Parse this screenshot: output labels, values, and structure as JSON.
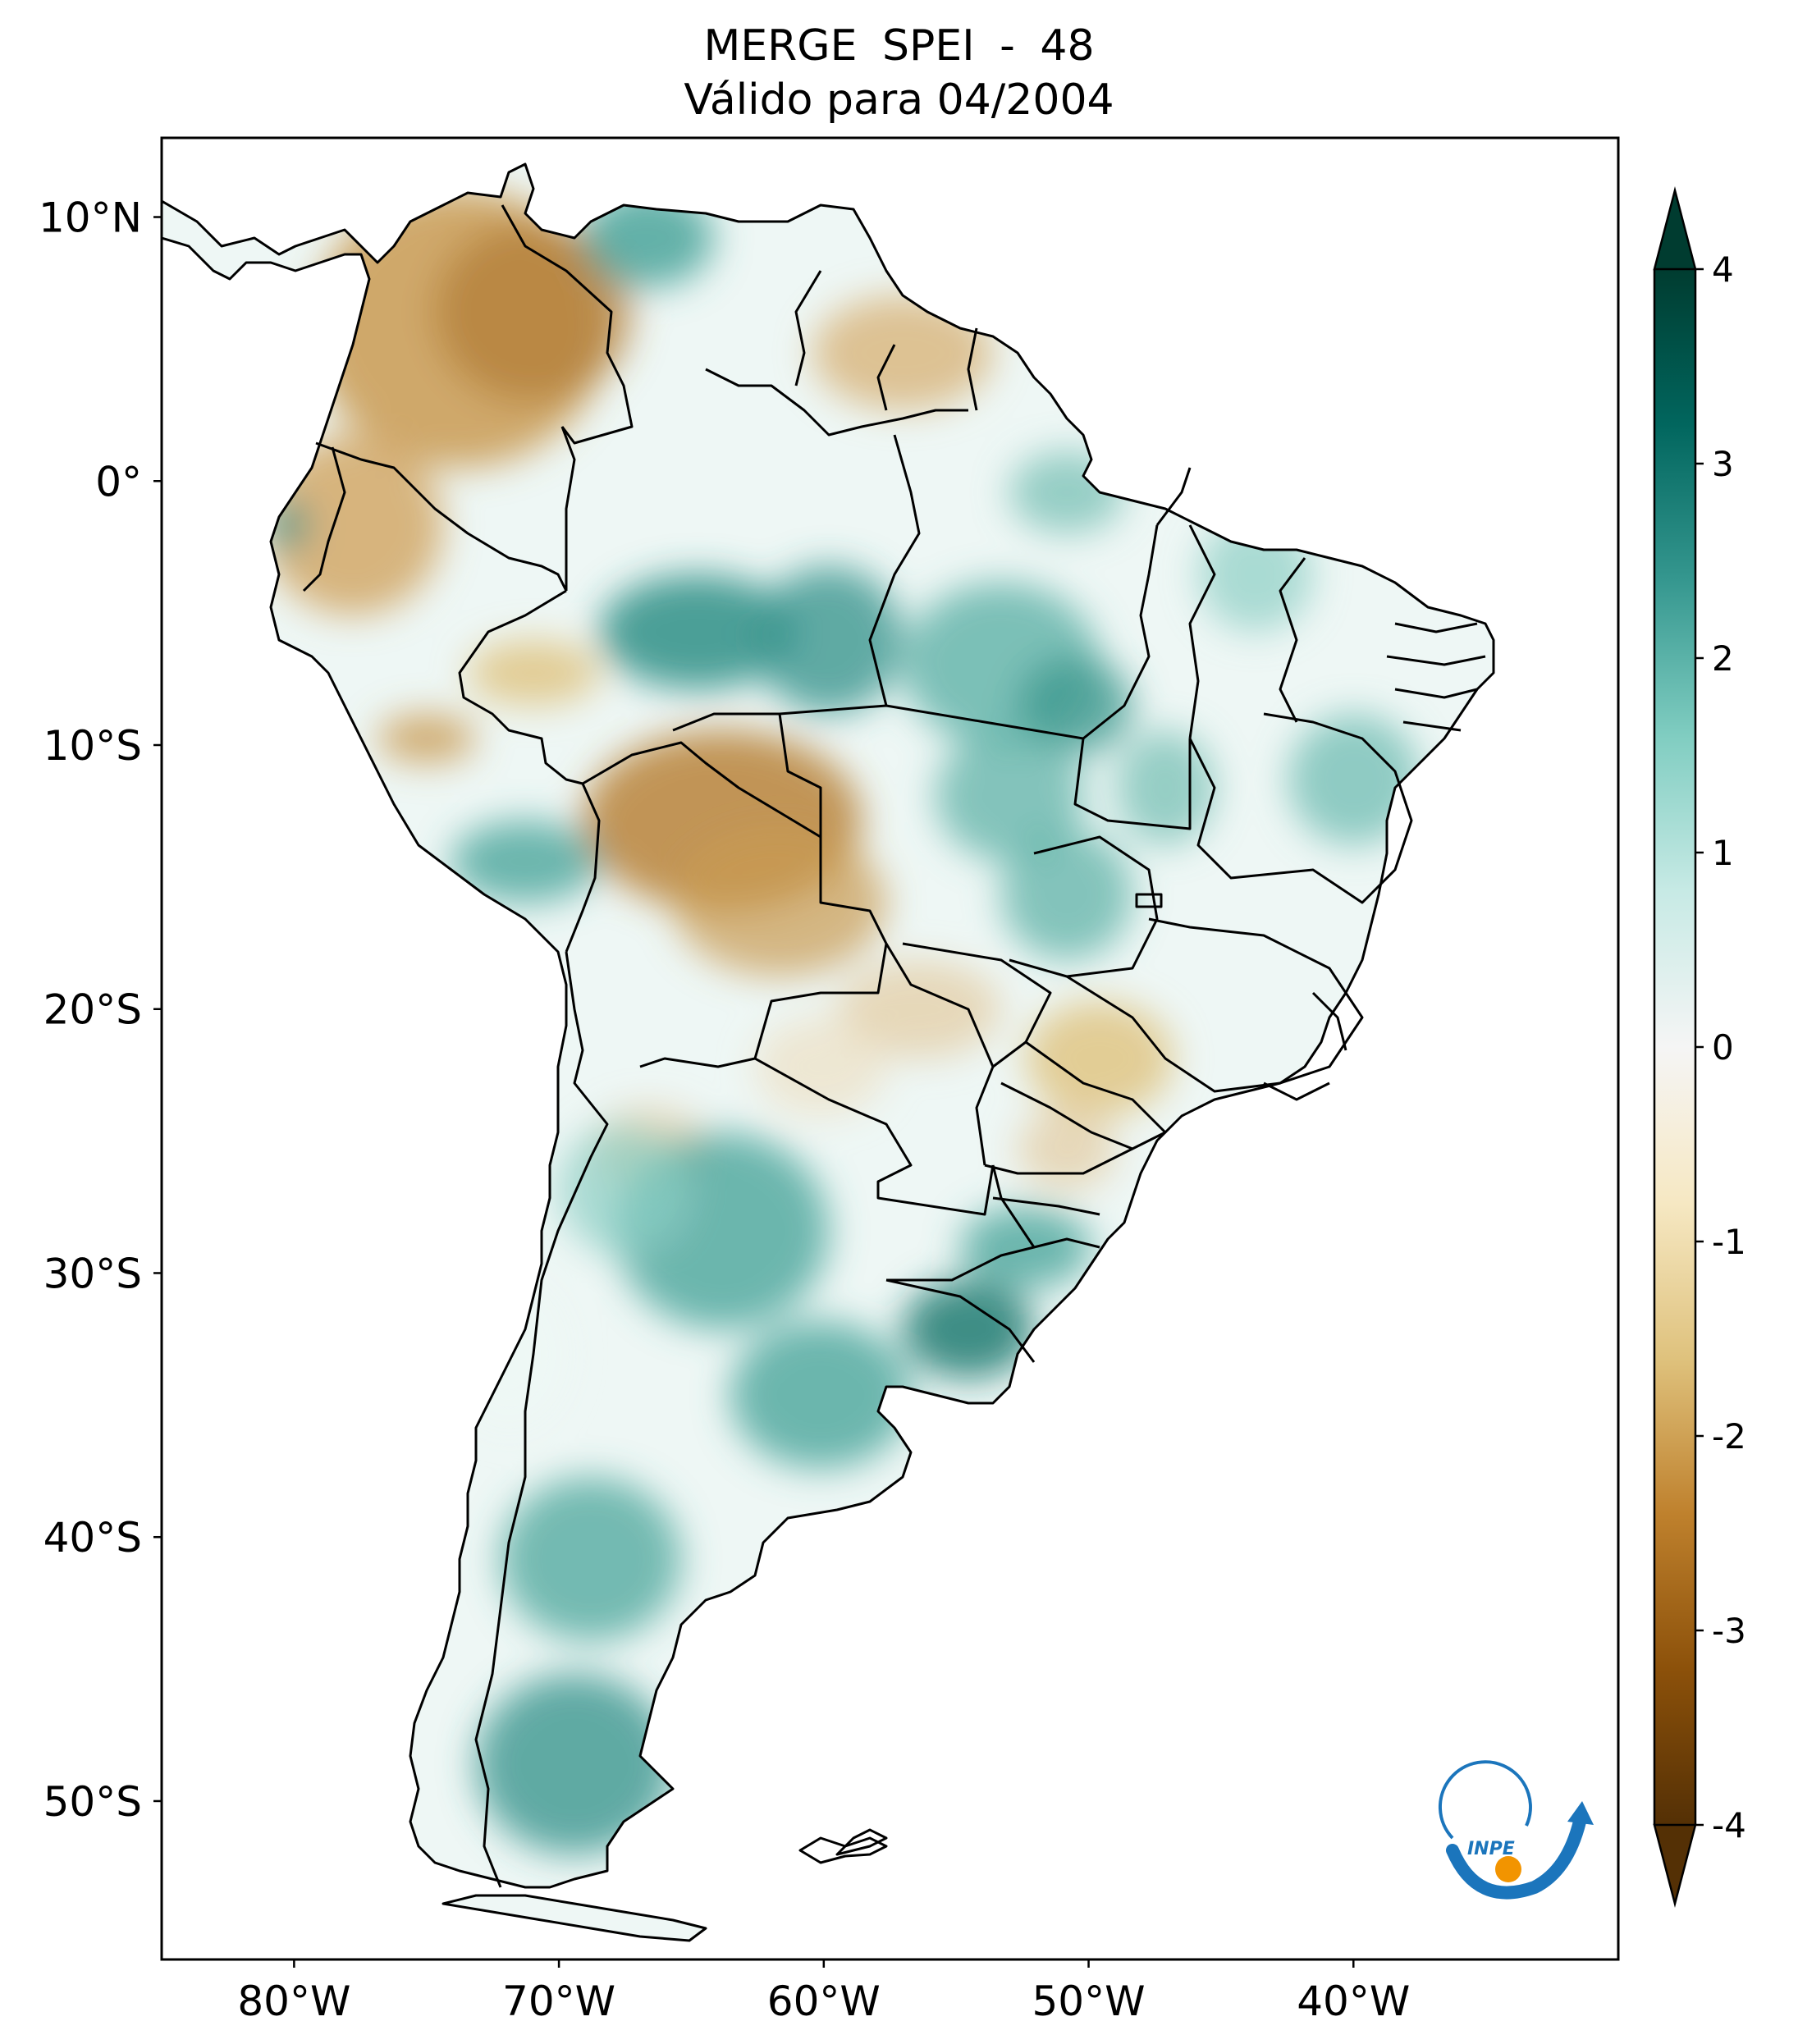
{
  "title": {
    "line1": "MERGE   SPEI - 48",
    "line2": "Válido para 04/2004"
  },
  "map": {
    "region": "South America",
    "variable": "SPEI - 48",
    "lat_ticks": [
      "10°N",
      "0°",
      "10°S",
      "20°S",
      "30°S",
      "40°S",
      "50°S"
    ],
    "lon_ticks": [
      "80°W",
      "70°W",
      "60°W",
      "50°W",
      "40°W"
    ],
    "lat_values": [
      10,
      0,
      -10,
      -20,
      -30,
      -40,
      -50
    ],
    "lon_values": [
      -80,
      -70,
      -60,
      -50,
      -40
    ],
    "lon_range": [
      -85,
      -30
    ],
    "lat_range": [
      -56,
      13
    ]
  },
  "colorbar": {
    "ticks": [
      "4",
      "3",
      "2",
      "1",
      "0",
      "-1",
      "-2",
      "-3",
      "-4"
    ],
    "values": [
      4,
      3,
      2,
      1,
      0,
      -1,
      -2,
      -3,
      -4
    ],
    "colormap": "BrBG",
    "colors": {
      "dry_extreme": "#543005",
      "dry_strong": "#8c510a",
      "dry_moderate": "#bf812d",
      "dry_mild": "#dfc27d",
      "dry_light": "#f6e8c3",
      "neutral": "#f5f5f5",
      "wet_light": "#c7eae5",
      "wet_mild": "#80cdc1",
      "wet_moderate": "#35978f",
      "wet_strong": "#01665e",
      "wet_extreme": "#003c30"
    }
  },
  "logo": {
    "text": "INPE"
  }
}
